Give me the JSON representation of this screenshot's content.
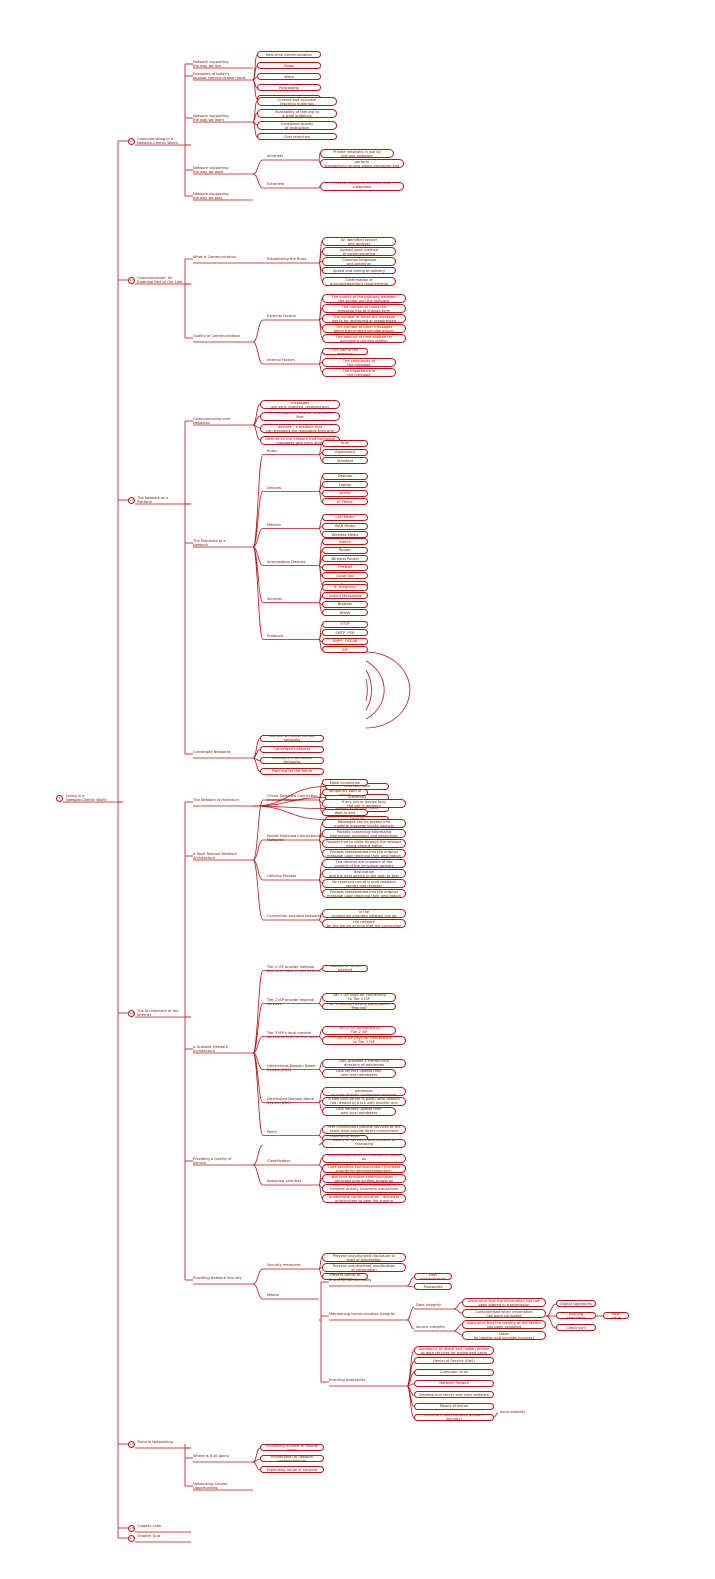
{
  "title_parts": [
    "1",
    "Living in a\nNetwork-Centric World"
  ],
  "sections": [
    {
      "num": "1.1",
      "label": "Communicating in a\nNetwork-Centric World",
      "subs": [
        {
          "num": "1.1.1",
          "label": "Network supporting\nthe way we live",
          "leaves": []
        },
        {
          "num": "1.1.2",
          "label": "Examples of today's\npopular communication tools",
          "leaves": [
            "Real-time communication",
            "Blogs",
            "Wikis",
            "Podcasting",
            "Collaboration Tools"
          ]
        },
        {
          "num": "1.1.3",
          "label": "Network supporting\nthe way we learn",
          "leaves": [
            "Current and accurate\nteaching materials",
            "Availability of training to\na wide audience",
            "Consistent quality\nof instruction",
            "Cost reduction"
          ]
        },
        {
          "num": "1.1.4",
          "label": "Network supporting\nthe way we work",
          "groups": [
            {
              "label": "Intranets",
              "leaves": [
                "Private networks in use by\njust one company",
                "Enable businesses to communicate and perform\ntransactions among global employee and branch locations"
              ]
            },
            {
              "label": "Extranets",
              "leaves": [
                "Provide suppliers, vendors, and customers\nlimited access to corporate data"
              ]
            }
          ]
        },
        {
          "num": "1.1.5",
          "label": "Network supporting\nthe way we play",
          "leaves": []
        }
      ]
    },
    {
      "num": "1.2",
      "label": "Communication: An\nEssential Part of Our Live",
      "subs": [
        {
          "num": "1.2.1",
          "label": "What is Communication",
          "groups": [
            {
              "label": "Establishing the Rules",
              "leaves": [
                "An identified sender\nand receiver",
                "Agreed upon method\nof communicating",
                "Common language\nand grammar",
                "Speed and timing of delivery",
                "Confirmation or\nacknowledgement requirements"
              ]
            }
          ]
        },
        {
          "num": "1.2.2",
          "label": "Quality of Communication",
          "groups": [
            {
              "label": "External Factors",
              "leaves": [
                "The quality of the pathway between\nthe sender and the recipient",
                "The number of times the\nmessage has to change form",
                "The number of times the message\nhas to be redirected or readdressed",
                "The number of other messages\nbeing transmitted simultaneously",
                "The amount of time allotted for\nsuccessful communication"
              ]
            },
            {
              "label": "Internal Factors",
              "leaves": [
                "The size of the message",
                "The complexity of\nthe message",
                "The importance of\nthe message"
              ]
            }
          ]
        }
      ]
    },
    {
      "num": "1.3",
      "label": "The Network as a\nPlatform",
      "subs": [
        {
          "num": "1.3.1",
          "label": "Communicating over\nNetworks",
          "leaves": [
            "Rules or agreements to govern how the messages\nare sent, directed, received and interpreted",
            "The messages or units of information that\ntravel from one device to another",
            "A means of interconnecting these devices – a medium that\ncan transport the messages from one device to another",
            "Devices on the network that exchange\nmessages with each other"
          ]
        },
        {
          "num": "1.3.2",
          "label": "The Elements of a\nNetwork",
          "groups": [
            {
              "label": "Rules",
              "leaves": [
                "Rule",
                "Agreement",
                "Standard"
              ]
            },
            {
              "label": "Devices",
              "leaves": [
                "Desktop",
                "Laptop",
                "Server",
                "IP Phone"
              ]
            },
            {
              "label": "Medium",
              "leaves": [
                "LAN Media",
                "WAN Media",
                "Wireless Media"
              ]
            },
            {
              "label": "Intermediary Devices",
              "leaves": [
                "Switch",
                "Router",
                "Wireless Router",
                "Firewall",
                "Cloud Box",
                "Cloud"
              ]
            },
            {
              "label": "Services",
              "leaves": [
                "IP Telephony",
                "Instant Messaging",
                "Browser",
                "WWW"
              ]
            },
            {
              "label": "Protocols",
              "leaves": [
                "HTTP",
                "SMTP, POP",
                "XMPP, OSCAR",
                "SIP"
              ]
            }
          ]
        },
        {
          "num": "1.3.3",
          "label": "Converged Networks",
          "leaves": [
            "Multiple services-multiple networks",
            "Converged networks",
            "Intelligent Information Networks",
            "Planning for the future"
          ]
        }
      ]
    },
    {
      "num": "1.4",
      "label": "The Architecture of the\nInternet",
      "subs": [
        {
          "num": "1.4.1",
          "label": "The Network Architecture",
          "leaves": [
            "Fault tolerance",
            "Scalability",
            "Quality of Service (QoS)",
            "Security"
          ]
        },
        {
          "num": "1.4.2",
          "label": "A Fault Tolerant Network\nArchitecture",
          "groups": [
            {
              "label": "Circuit Switched Connection-\noriented Networks",
              "leaves": [
                "Make connection",
                "Temporary path or circuit",
                "If any link or device fails,\nthe call is dropped",
                "Wait-in-end"
              ]
            },
            {
              "label": "Packet Switched Connectionless\nNetworks",
              "leaves": [
                "Messages can be broken into\nmultiple message blocks-packets",
                "Packets containing addressing\ninformation-originator and destination",
                "Packets free to route through the network\nalong various paths",
                "Packets reassembled into the original\nmessage upon reaching their destination"
              ]
            },
            {
              "label": "Utilizing Packets",
              "leaves": [
                "The devices are unaware of the\ncontent of the individual packets",
                "Only visible is the address of the final destination\nand the next device in the path to that destination",
                "No reserved circuit is built between\nsender and receiver",
                "Packets reassembled into the original\nmessage upon reaching their destination"
              ]
            },
            {
              "label": "Connection-oriented Networks",
              "leaves": [
                "The quality and consistency of messages in the\nconnection-oriented network can be guaranteed",
                "Service Providers can charge the users of the network\nfor the period of time that the connection is active"
              ]
            }
          ]
        },
        {
          "num": "1.4.3",
          "label": "A Scalable Network\nArchitecture",
          "groups": [
            {
              "label": "Tier 1 ISP provide national\nand international connections",
              "leaves": [
                "\"Backbone\" of the Internet"
              ]
            },
            {
              "label": "Tier 2 ISP provide regional\nservices",
              "leaves": [
                "Tier 2 ISP pays for connecting\nto Tier 1 ISP",
                "ISP's interconnecting point called \"Peerlink\""
              ]
            },
            {
              "label": "Tier 3 ISP's local provide\nservice directly to end users",
              "leaves": [
                "Tier 3 ISP connected to\nTier 2 ISP",
                "Tier 3 ISP pays for connectivity\nto Tier 2 ISP"
              ]
            },
            {
              "label": "Hierarchical-Domain Name\nSystem(DNS)",
              "leaves": [
                "DNS provides a hierarchical\ndirectory of addresses",
                "DNS servers update their\nown local databases"
              ]
            },
            {
              "label": "Distributed-Domain Name\nSystem(DNS)",
              "leaves": [
                "DNS servers maintain local host addresses\nonly for directly connected networks",
                "A new DNS server is given local domain\nnot needed to track with another one",
                "DNS servers update their\nown local databases"
              ]
            },
            {
              "label": "Peers",
              "leaves": [
                "Peer connections provide services at the\nsame level-provide direct connections",
                "Expanding larger routes"
              ]
            }
          ]
        },
        {
          "num": "1.4.4",
          "label": "Providing a Quality of\nService",
          "groups": [
            {
              "label": "",
              "leaves": [
                "Quality of Service (QoS)-achieve by managing\nthe delay and packet loss parameters"
              ]
            },
            {
              "label": "Classification",
              "leaves": [
                "Classify applications in categories based on\nspecific quality of service requirements",
                "Use a combination of communication\ncharacteristics and the relative importance"
              ]
            },
            {
              "label": "Assigning priorities",
              "leaves": [
                "Time-sensitive communication (Increase\npriority for services/telephone)",
                "Not time-sensitive communication –\ndecrease priority(Web-browsing)",
                "High importance to organization →\nincrease priority (business transaction data)",
                "Undesirable communication – decrease\npriority/peer-to-peer file sharing"
              ]
            }
          ]
        },
        {
          "num": "1.4.5",
          "label": "Providing Network Security",
          "groups": [
            {
              "label": "Security measures",
              "leaves": [
                "Prevent unauthorized disclosure or\ntheft of information",
                "Prevent unauthorized modification\nof information",
                "Prevent Denial of Service"
              ]
            },
            {
              "label": "Means",
              "leaves": []
            }
          ]
        }
      ]
    },
    {
      "num": "1.5",
      "label": "Trend in Networking",
      "subs": [
        {
          "num": "1.5.1",
          "label": "Where is it all going",
          "leaves": [
            "Increasing number of mobile users",
            "Proliferation of network capable devices",
            "Expanding range of services"
          ]
        },
        {
          "num": "1.5.2",
          "label": "Networking Course\nOpportunities",
          "leaves": []
        }
      ]
    },
    {
      "num": "1.6",
      "label": "Chapter Labs",
      "subs": []
    },
    {
      "num": "1.7",
      "label": "Chapter Quiz",
      "subs": []
    }
  ],
  "security_means": [
    {
      "label": "Ensuring confidentiality",
      "leaves": [
        "User authentication",
        "Passwords"
      ]
    },
    {
      "label": "Maintaining communication integrity",
      "groups": [
        {
          "label": "Data Integrity",
          "leaves": [
            "Assurance that the information has not\nbeen altered in transmission",
            "Compromised when information\nhas been corrupted"
          ]
        },
        {
          "label": "Source Integrity",
          "leaves": [
            "Assurance that the identity of the sender\nhas been validated",
            "Compromised when a user or device fakes\nits identity and supplies incorrect information"
          ]
        }
      ],
      "methods": [
        "Digital signatures",
        "Hashing algorithms",
        "Check sum"
      ],
      "hash_value": "Hash value"
    },
    {
      "label": "Ensuring availability",
      "leaves": [
        "Avoidance of denial and hidden access\nto data services for authorized users",
        "Denial of Service (DoS)",
        "Computer virus",
        "Network firewall",
        "Desktop and server anti-virus software",
        "Means of failure",
        "Maximum Lab(Providing Network Security)"
      ],
      "tail": "accountability"
    }
  ],
  "colors": {
    "line": "#b01818",
    "text": "#7a0c0c"
  }
}
